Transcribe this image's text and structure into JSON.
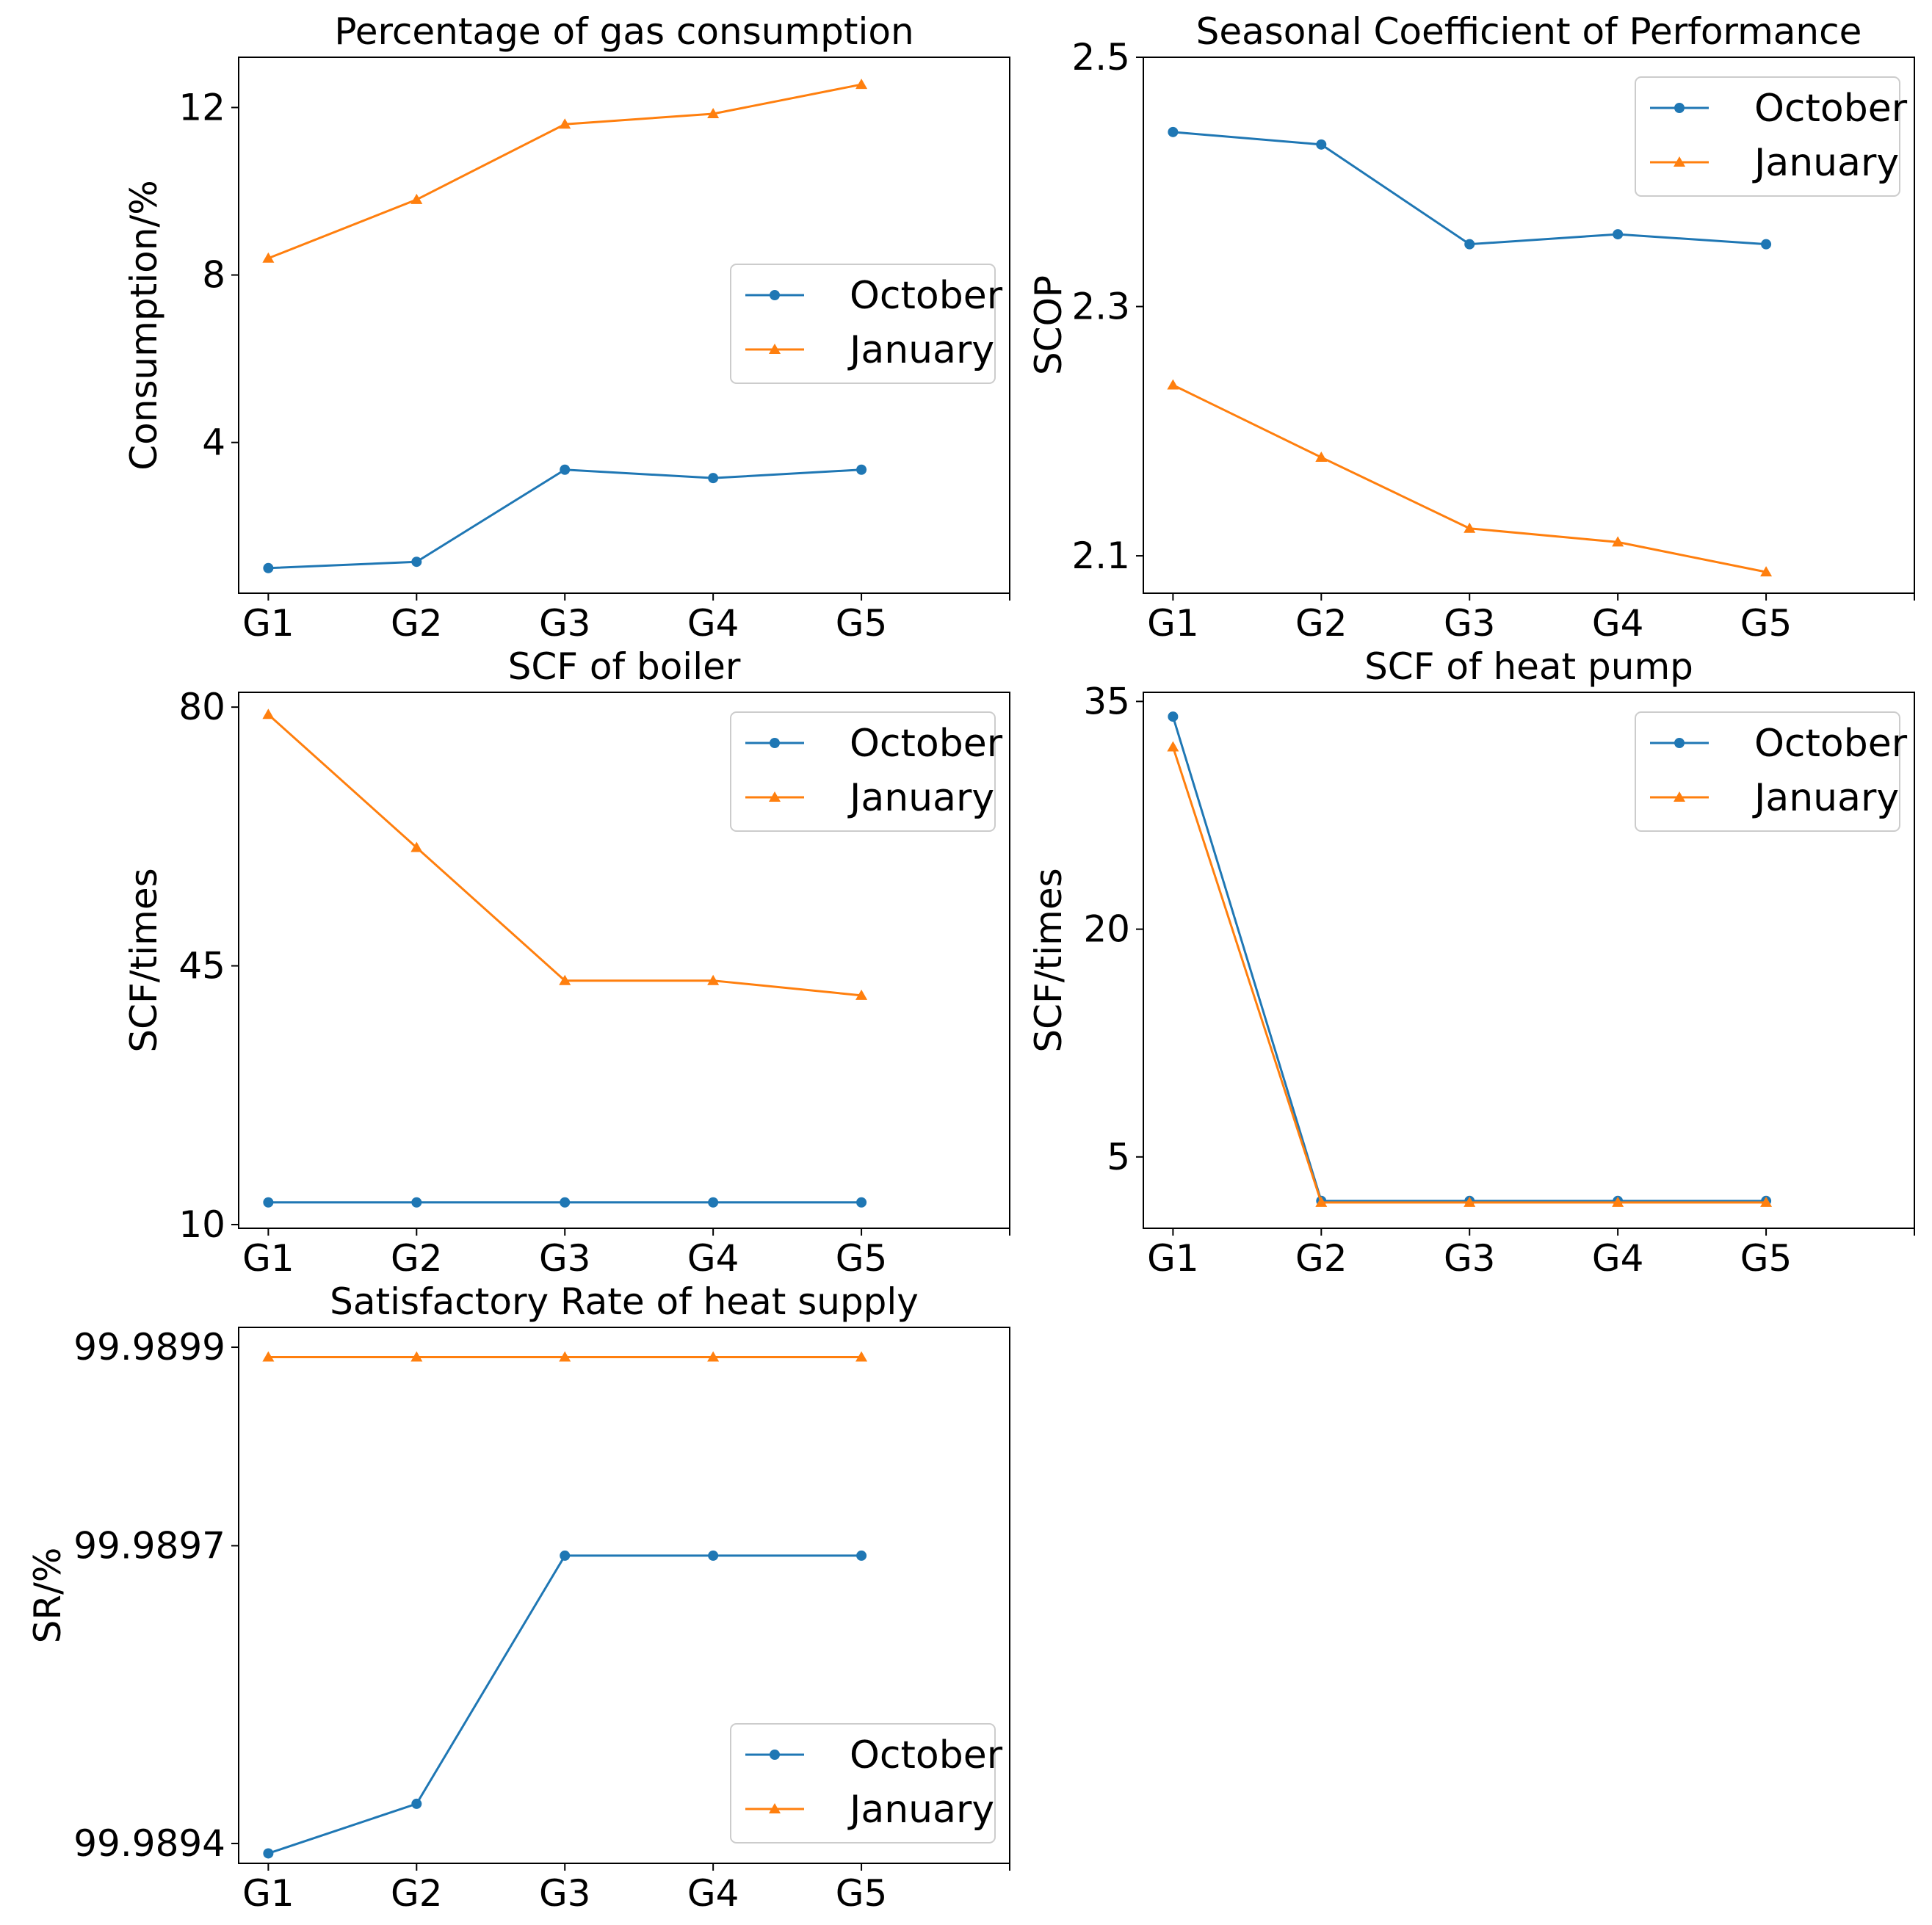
{
  "colors": {
    "october": "#1f77b4",
    "january": "#ff7f0e"
  },
  "chart_data": [
    {
      "type": "line",
      "title": "Percentage of gas consumption",
      "xlabel": "",
      "ylabel": "Consumption/%",
      "categories": [
        "G1",
        "G2",
        "G3",
        "G4",
        "G5"
      ],
      "xlim": [
        -0.2,
        5
      ],
      "ylim": [
        0.4,
        13.2
      ],
      "yticks": [
        4,
        8,
        12
      ],
      "ytick_labels": [
        "4",
        "8",
        "12"
      ],
      "legend_loc": "center-right",
      "series": [
        {
          "name": "October",
          "marker": "circle",
          "values": [
            1.0,
            1.15,
            3.35,
            3.15,
            3.35
          ]
        },
        {
          "name": "January",
          "marker": "triangle",
          "values": [
            8.4,
            9.8,
            11.6,
            11.85,
            12.55
          ]
        }
      ]
    },
    {
      "type": "line",
      "title": "Seasonal Coefficient of Performance",
      "xlabel": "",
      "ylabel": "SCOP",
      "categories": [
        "G1",
        "G2",
        "G3",
        "G4",
        "G5"
      ],
      "xlim": [
        -0.2,
        5
      ],
      "ylim": [
        2.07,
        2.5
      ],
      "yticks": [
        2.1,
        2.3,
        2.5
      ],
      "ytick_labels": [
        "2.1",
        "2.3",
        "2.5"
      ],
      "legend_loc": "upper-right",
      "series": [
        {
          "name": "October",
          "marker": "circle",
          "values": [
            2.44,
            2.43,
            2.35,
            2.358,
            2.35
          ]
        },
        {
          "name": "January",
          "marker": "triangle",
          "values": [
            2.237,
            2.179,
            2.122,
            2.111,
            2.087
          ]
        }
      ]
    },
    {
      "type": "line",
      "title": "SCF of boiler",
      "xlabel": "",
      "ylabel": "SCF/times",
      "categories": [
        "G1",
        "G2",
        "G3",
        "G4",
        "G5"
      ],
      "xlim": [
        -0.2,
        5
      ],
      "ylim": [
        9.5,
        82
      ],
      "yticks": [
        10,
        45,
        80
      ],
      "ytick_labels": [
        "10",
        "45",
        "80"
      ],
      "legend_loc": "upper-right",
      "series": [
        {
          "name": "October",
          "marker": "circle",
          "values": [
            13,
            13,
            13,
            13,
            13
          ]
        },
        {
          "name": "January",
          "marker": "triangle",
          "values": [
            79,
            61,
            43,
            43,
            41
          ]
        }
      ]
    },
    {
      "type": "line",
      "title": "SCF of heat pump",
      "xlabel": "",
      "ylabel": "SCF/times",
      "categories": [
        "G1",
        "G2",
        "G3",
        "G4",
        "G5"
      ],
      "xlim": [
        -0.2,
        5
      ],
      "ylim": [
        0.3,
        35.6
      ],
      "yticks": [
        5,
        20,
        35
      ],
      "ytick_labels": [
        "5",
        "20",
        "35"
      ],
      "legend_loc": "upper-right",
      "series": [
        {
          "name": "October",
          "marker": "circle",
          "values": [
            34,
            2.1,
            2.1,
            2.1,
            2.1
          ]
        },
        {
          "name": "January",
          "marker": "triangle",
          "values": [
            32,
            2.0,
            2.0,
            2.0,
            2.0
          ]
        }
      ]
    },
    {
      "type": "line",
      "title": "Satisfactory Rate of heat supply",
      "xlabel": "",
      "ylabel": "SR/%",
      "categories": [
        "G1",
        "G2",
        "G3",
        "G4",
        "G5"
      ],
      "xlim": [
        -0.2,
        5
      ],
      "ylim": [
        99.98938,
        99.98992
      ],
      "yticks": [
        99.9894,
        99.9897,
        99.9899
      ],
      "ytick_labels": [
        "99.9894",
        "99.9897",
        "99.9899"
      ],
      "legend_loc": "lower-right",
      "series": [
        {
          "name": "October",
          "marker": "circle",
          "values": [
            99.98939,
            99.98944,
            99.98969,
            99.98969,
            99.98969
          ]
        },
        {
          "name": "January",
          "marker": "triangle",
          "values": [
            99.98989,
            99.98989,
            99.98989,
            99.98989,
            99.98989
          ]
        }
      ]
    }
  ]
}
